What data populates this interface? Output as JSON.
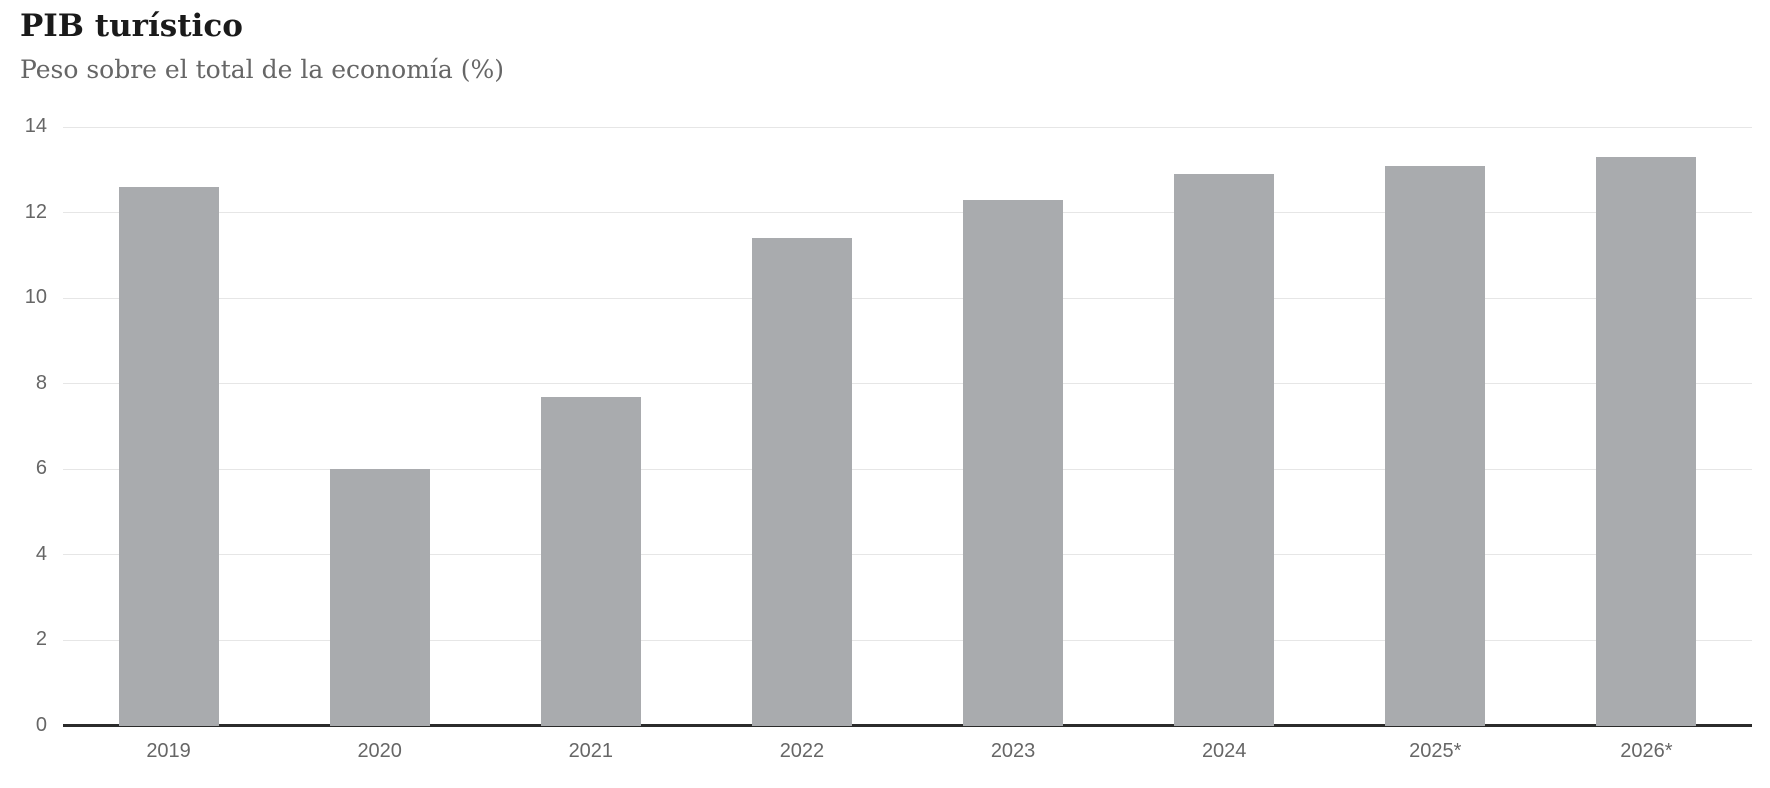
{
  "header": {
    "title": "PIB turístico",
    "subtitle": "Peso sobre el total de la economía (%)",
    "menu_icon": "hamburger-menu-icon"
  },
  "colors": {
    "background": "#ffffff",
    "bar": "#a9abae",
    "axis_line": "#2b2b2b",
    "gridline": "#e6e6e6",
    "axis_label": "#666666",
    "title": "#1a1a1a",
    "subtitle": "#666666",
    "menu_icon": "#565656"
  },
  "chart_data": {
    "type": "bar",
    "title": "PIB turístico",
    "subtitle": "Peso sobre el total de la economía (%)",
    "categories": [
      "2019",
      "2020",
      "2021",
      "2022",
      "2023",
      "2024",
      "2025*",
      "2026*"
    ],
    "values": [
      12.6,
      6.0,
      7.7,
      11.4,
      12.3,
      12.9,
      13.1,
      13.3
    ],
    "xlabel": "",
    "ylabel": "",
    "ylim": [
      0,
      14
    ],
    "yticks": [
      0,
      2,
      4,
      6,
      8,
      10,
      12,
      14
    ],
    "grid": true,
    "legend": "none",
    "bar_color": "#a9abae"
  }
}
